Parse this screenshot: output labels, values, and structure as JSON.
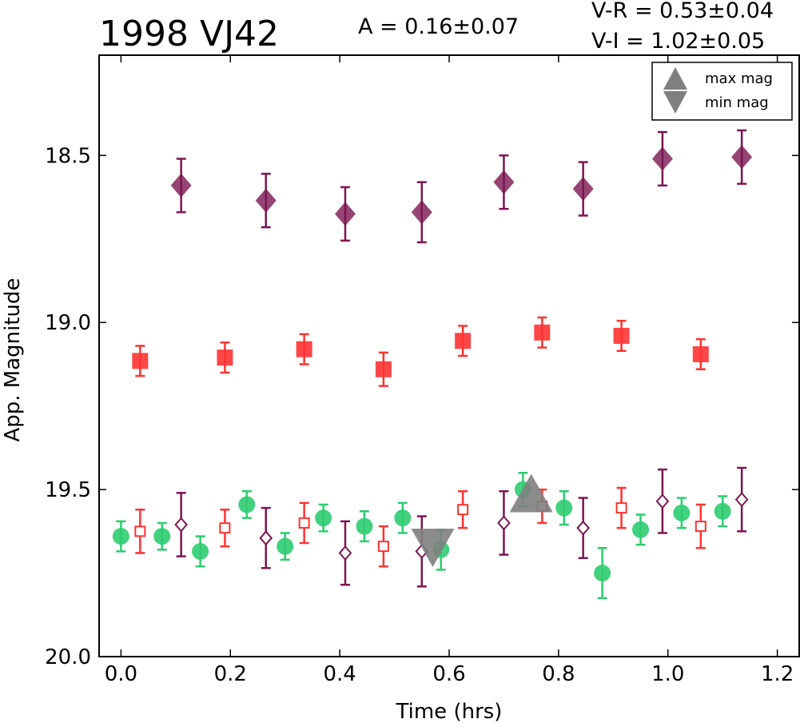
{
  "chart_data": {
    "type": "scatter",
    "title": "1998 VJ42",
    "annotations": {
      "amplitude": "A  = 0.16±0.07",
      "vr": "V-R = 0.53±0.04",
      "vi": "V-I  = 1.02±0.05"
    },
    "xlabel": "Time (hrs)",
    "ylabel": "App. Magnitude",
    "xlim": [
      -0.04,
      1.24
    ],
    "ylim": [
      20.0,
      18.2
    ],
    "y_inverted": true,
    "x_ticks": [
      "0.0",
      "0.2",
      "0.4",
      "0.6",
      "0.8",
      "1.0",
      "1.2"
    ],
    "y_ticks": [
      "18.5",
      "19.0",
      "19.5",
      "20.0"
    ],
    "grid": false,
    "legend": {
      "placement": "top-right",
      "entries": [
        "max mag",
        "min mag"
      ]
    },
    "colors": {
      "green": "#2ecc71",
      "red": "#ff3333",
      "purple": "#7b1650",
      "marker_gray": "#7f7f7f"
    },
    "series": [
      {
        "marker": "filled-diamond",
        "color": "#7b1650",
        "points": [
          {
            "x": 0.11,
            "y": 18.59,
            "err": 0.08
          },
          {
            "x": 0.265,
            "y": 18.635,
            "err": 0.08
          },
          {
            "x": 0.41,
            "y": 18.675,
            "err": 0.08
          },
          {
            "x": 0.55,
            "y": 18.67,
            "err": 0.09
          },
          {
            "x": 0.7,
            "y": 18.58,
            "err": 0.08
          },
          {
            "x": 0.845,
            "y": 18.6,
            "err": 0.08
          },
          {
            "x": 0.99,
            "y": 18.51,
            "err": 0.08
          },
          {
            "x": 1.135,
            "y": 18.505,
            "err": 0.08
          }
        ]
      },
      {
        "marker": "filled-square",
        "color": "#ff3333",
        "points": [
          {
            "x": 0.035,
            "y": 19.115,
            "err": 0.045
          },
          {
            "x": 0.19,
            "y": 19.105,
            "err": 0.045
          },
          {
            "x": 0.335,
            "y": 19.08,
            "err": 0.045
          },
          {
            "x": 0.48,
            "y": 19.14,
            "err": 0.05
          },
          {
            "x": 0.625,
            "y": 19.055,
            "err": 0.045
          },
          {
            "x": 0.77,
            "y": 19.03,
            "err": 0.045
          },
          {
            "x": 0.915,
            "y": 19.04,
            "err": 0.045
          },
          {
            "x": 1.06,
            "y": 19.095,
            "err": 0.045
          }
        ]
      },
      {
        "marker": "filled-circle",
        "color": "#2ecc71",
        "points": [
          {
            "x": 0.0,
            "y": 19.64,
            "err": 0.045
          },
          {
            "x": 0.075,
            "y": 19.64,
            "err": 0.04
          },
          {
            "x": 0.145,
            "y": 19.685,
            "err": 0.045
          },
          {
            "x": 0.23,
            "y": 19.545,
            "err": 0.04
          },
          {
            "x": 0.3,
            "y": 19.67,
            "err": 0.04
          },
          {
            "x": 0.37,
            "y": 19.585,
            "err": 0.04
          },
          {
            "x": 0.445,
            "y": 19.61,
            "err": 0.045
          },
          {
            "x": 0.515,
            "y": 19.585,
            "err": 0.045
          },
          {
            "x": 0.585,
            "y": 19.68,
            "err": 0.06
          },
          {
            "x": 0.735,
            "y": 19.5,
            "err": 0.05
          },
          {
            "x": 0.81,
            "y": 19.555,
            "err": 0.05
          },
          {
            "x": 0.88,
            "y": 19.75,
            "err": 0.075
          },
          {
            "x": 0.95,
            "y": 19.62,
            "err": 0.045
          },
          {
            "x": 1.025,
            "y": 19.57,
            "err": 0.045
          },
          {
            "x": 1.1,
            "y": 19.565,
            "err": 0.045
          }
        ]
      },
      {
        "marker": "open-square",
        "color": "#ff3333",
        "points": [
          {
            "x": 0.035,
            "y": 19.625,
            "err": 0.065
          },
          {
            "x": 0.19,
            "y": 19.615,
            "err": 0.055
          },
          {
            "x": 0.335,
            "y": 19.6,
            "err": 0.06
          },
          {
            "x": 0.48,
            "y": 19.67,
            "err": 0.06
          },
          {
            "x": 0.625,
            "y": 19.56,
            "err": 0.055
          },
          {
            "x": 0.77,
            "y": 19.55,
            "err": 0.05
          },
          {
            "x": 0.915,
            "y": 19.555,
            "err": 0.06
          },
          {
            "x": 1.06,
            "y": 19.61,
            "err": 0.065
          }
        ]
      },
      {
        "marker": "open-diamond",
        "color": "#7b1650",
        "points": [
          {
            "x": 0.11,
            "y": 19.605,
            "err": 0.095
          },
          {
            "x": 0.265,
            "y": 19.645,
            "err": 0.09
          },
          {
            "x": 0.41,
            "y": 19.69,
            "err": 0.095
          },
          {
            "x": 0.55,
            "y": 19.685,
            "err": 0.105
          },
          {
            "x": 0.7,
            "y": 19.6,
            "err": 0.095
          },
          {
            "x": 0.845,
            "y": 19.615,
            "err": 0.09
          },
          {
            "x": 0.99,
            "y": 19.535,
            "err": 0.095
          },
          {
            "x": 1.135,
            "y": 19.53,
            "err": 0.095
          }
        ]
      }
    ],
    "max_mag": {
      "x": 0.75,
      "y": 19.52
    },
    "min_mag": {
      "x": 0.57,
      "y": 19.665
    }
  }
}
